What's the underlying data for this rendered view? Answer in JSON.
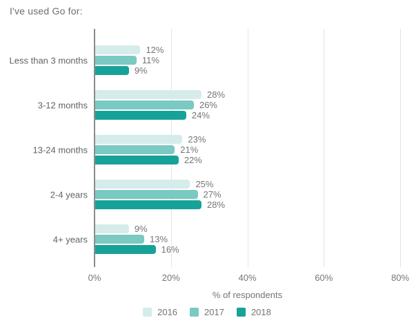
{
  "title": "I've used Go for:",
  "chart_data": {
    "type": "bar",
    "orientation": "horizontal",
    "title": "I've used Go for:",
    "xlabel": "% of respondents",
    "ylabel": "",
    "xlim": [
      0,
      80
    ],
    "xticks": [
      "0%",
      "20%",
      "40%",
      "60%",
      "80%"
    ],
    "grid": true,
    "legend_position": "bottom",
    "value_label_suffix": "%",
    "categories": [
      "Less than 3 months",
      "3-12 months",
      "13-24 months",
      "2-4 years",
      "4+ years"
    ],
    "series": [
      {
        "name": "2016",
        "color": "#d5ecea",
        "values": [
          12,
          28,
          23,
          25,
          9
        ]
      },
      {
        "name": "2017",
        "color": "#7ac9c2",
        "values": [
          11,
          26,
          21,
          27,
          13
        ]
      },
      {
        "name": "2018",
        "color": "#17a299",
        "values": [
          9,
          24,
          22,
          28,
          16
        ]
      }
    ],
    "colors": {
      "gridline": "#e3e3e3",
      "axis_line": "#8a8a8a",
      "label_text": "#757575",
      "category_text": "#5f6368"
    }
  }
}
